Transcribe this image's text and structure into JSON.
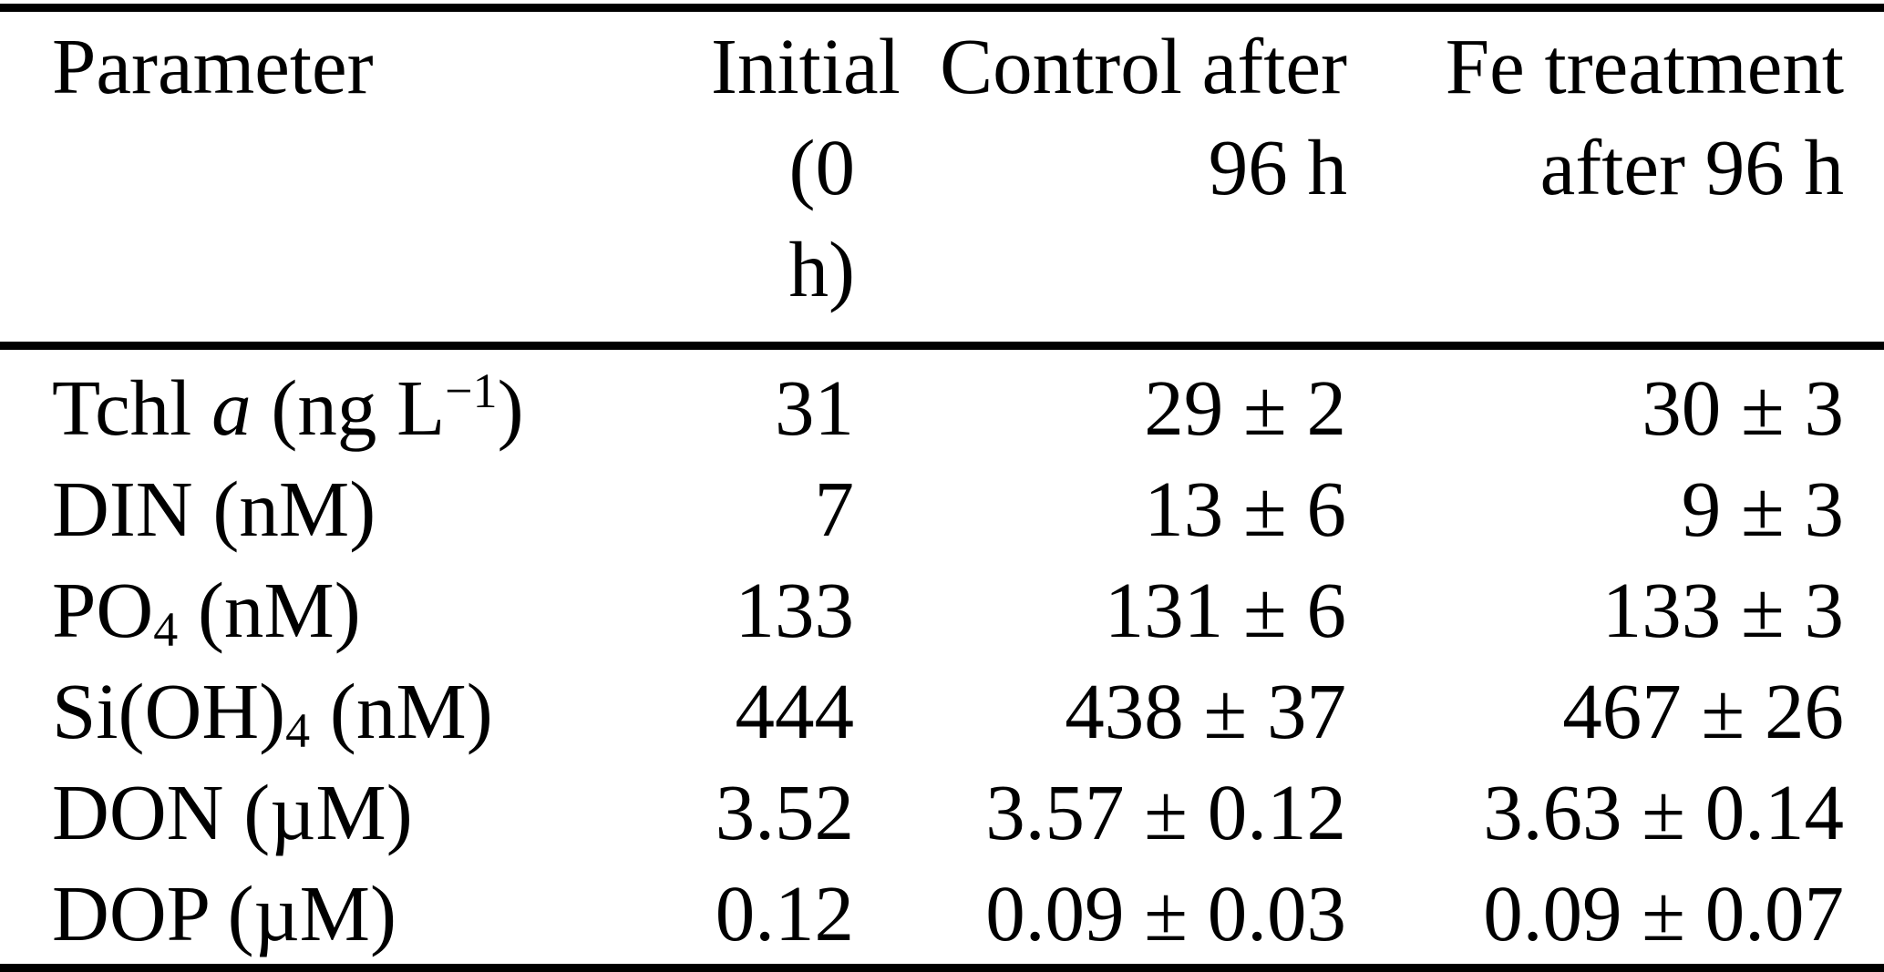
{
  "page": {
    "background_color": "#ffffff",
    "text_color": "#000000",
    "rule_color": "#000000"
  },
  "table": {
    "header": [
      {
        "line1": "Parameter",
        "line2": ""
      },
      {
        "line1": "Initial",
        "line2": "(0 h)"
      },
      {
        "line1": "Control after",
        "line2": "96 h"
      },
      {
        "line1": "Fe treatment",
        "line2": "after 96 h"
      }
    ],
    "rows": [
      {
        "parameter": [
          {
            "t": "Tchl "
          },
          {
            "t": "a",
            "style": "italic"
          },
          {
            "t": " (ng L"
          },
          {
            "t": "−1",
            "style": "sup"
          },
          {
            "t": ")"
          }
        ],
        "initial": "31",
        "control_96h": "29 ± 2",
        "fe_96h": "30 ± 3"
      },
      {
        "parameter": [
          {
            "t": "DIN (nM)"
          }
        ],
        "initial": "7",
        "control_96h": "13 ± 6",
        "fe_96h": "9 ± 3"
      },
      {
        "parameter": [
          {
            "t": "PO"
          },
          {
            "t": "4",
            "style": "sub"
          },
          {
            "t": " (nM)"
          }
        ],
        "initial": "133",
        "control_96h": "131 ± 6",
        "fe_96h": "133 ± 3"
      },
      {
        "parameter": [
          {
            "t": "Si(OH)"
          },
          {
            "t": "4",
            "style": "sub"
          },
          {
            "t": " (nM)"
          }
        ],
        "initial": "444",
        "control_96h": "438 ± 37",
        "fe_96h": "467 ± 26"
      },
      {
        "parameter": [
          {
            "t": "DON (µM)"
          }
        ],
        "initial": "3.52",
        "control_96h": "3.57 ± 0.12",
        "fe_96h": "3.63 ± 0.14"
      },
      {
        "parameter": [
          {
            "t": "DOP (µM)"
          }
        ],
        "initial": "0.12",
        "control_96h": "0.09 ± 0.03",
        "fe_96h": "0.09 ± 0.07"
      }
    ]
  },
  "chart_data": {
    "type": "table",
    "columns": [
      "Parameter",
      "Initial (0 h)",
      "Control after 96 h",
      "Fe treatment after 96 h"
    ],
    "rows": [
      [
        "Tchl a (ng L−1)",
        "31",
        "29 ± 2",
        "30 ± 3"
      ],
      [
        "DIN (nM)",
        "7",
        "13 ± 6",
        "9 ± 3"
      ],
      [
        "PO4 (nM)",
        "133",
        "131 ± 6",
        "133 ± 3"
      ],
      [
        "Si(OH)4 (nM)",
        "444",
        "438 ± 37",
        "467 ± 26"
      ],
      [
        "DON (µM)",
        "3.52",
        "3.57 ± 0.12",
        "3.63 ± 0.14"
      ],
      [
        "DOP (µM)",
        "0.12",
        "0.09 ± 0.03",
        "0.09 ± 0.07"
      ]
    ]
  }
}
